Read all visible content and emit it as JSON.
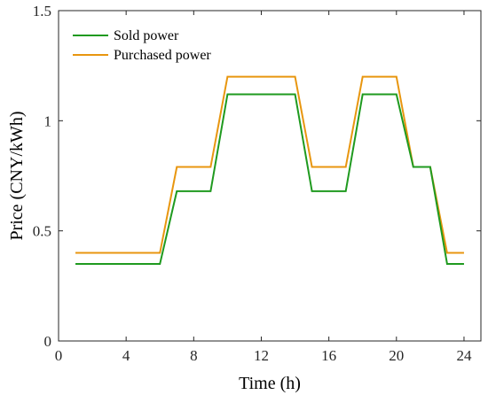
{
  "chart_data": {
    "type": "line",
    "title": "",
    "xlabel": "Time (h)",
    "ylabel": "Price (CNY/kWh)",
    "xlim": [
      0,
      25
    ],
    "ylim": [
      0,
      1.5
    ],
    "xticks": [
      0,
      4,
      8,
      12,
      16,
      20,
      24
    ],
    "yticks": [
      0,
      0.5,
      1,
      1.5
    ],
    "xtick_labels": [
      "0",
      "4",
      "8",
      "12",
      "16",
      "20",
      "24"
    ],
    "ytick_labels": [
      "0",
      "0.5",
      "1",
      "1.5"
    ],
    "grid": false,
    "legend_position": "top-left",
    "x": [
      1,
      2,
      3,
      4,
      5,
      6,
      7,
      8,
      9,
      10,
      11,
      12,
      13,
      14,
      15,
      16,
      17,
      18,
      19,
      20,
      21,
      22,
      23,
      24
    ],
    "series": [
      {
        "name": "Sold power",
        "color": "#1f9a1f",
        "values": [
          0.35,
          0.35,
          0.35,
          0.35,
          0.35,
          0.35,
          0.68,
          0.68,
          0.68,
          1.12,
          1.12,
          1.12,
          1.12,
          1.12,
          0.68,
          0.68,
          0.68,
          1.12,
          1.12,
          1.12,
          0.79,
          0.79,
          0.35,
          0.35
        ]
      },
      {
        "name": "Purchased power",
        "color": "#e8960f",
        "values": [
          0.4,
          0.4,
          0.4,
          0.4,
          0.4,
          0.4,
          0.79,
          0.79,
          0.79,
          1.2,
          1.2,
          1.2,
          1.2,
          1.2,
          0.79,
          0.79,
          0.79,
          1.2,
          1.2,
          1.2,
          0.79,
          0.79,
          0.4,
          0.4
        ]
      }
    ]
  }
}
